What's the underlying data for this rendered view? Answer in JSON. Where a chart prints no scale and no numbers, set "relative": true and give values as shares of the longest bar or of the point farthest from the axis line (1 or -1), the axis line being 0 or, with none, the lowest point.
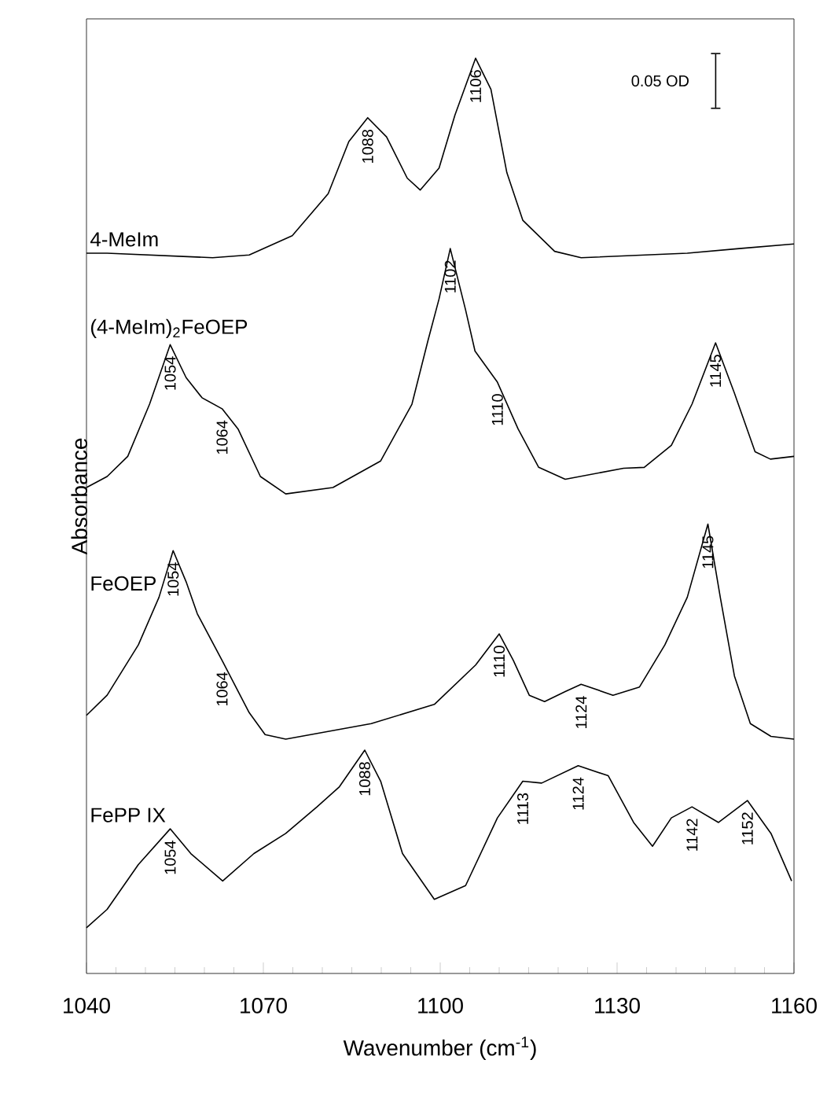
{
  "chart_data": {
    "type": "line",
    "relative": true,
    "xlabel": "Wavenumber (cm$^{-1}$)",
    "ylabel": "Absorbance",
    "xlim": [
      1040,
      1160
    ],
    "xticks": [
      1040,
      1070,
      1100,
      1130,
      1160
    ],
    "grid": false,
    "marker": "none",
    "line_style": "solid",
    "series": [
      {
        "name": "4-MeIm",
        "color": "#000000",
        "x": [
          1040,
          1043.5,
          1061.4,
          1067.6,
          1074.9,
          1081,
          1084.5,
          1087.7,
          1090.9,
          1094.4,
          1096.6,
          1099.8,
          1102.5,
          1106,
          1108.6,
          1111.3,
          1114,
          1119.4,
          1123.9,
          1141.9,
          1150.7,
          1160
        ],
        "values": [
          0.787,
          0.787,
          0.782,
          0.785,
          0.806,
          0.852,
          0.909,
          0.935,
          0.914,
          0.869,
          0.856,
          0.88,
          0.938,
          1.0,
          0.966,
          0.875,
          0.823,
          0.789,
          0.782,
          0.787,
          0.792,
          0.797
        ]
      },
      {
        "name": "(4-MeIm)$_{2}$FeOEP",
        "color": "#000000",
        "x": [
          1040,
          1043.5,
          1047,
          1050.7,
          1054.2,
          1056.9,
          1059.6,
          1063,
          1065.7,
          1069.5,
          1073.8,
          1081.8,
          1089.9,
          1095.2,
          1097.9,
          1099.8,
          1101.7,
          1104.3,
          1105.9,
          1109.7,
          1113.2,
          1116.7,
          1121.2,
          1131.1,
          1134.6,
          1139.2,
          1142.7,
          1146.7,
          1149.9,
          1153.4,
          1156,
          1160
        ],
        "values": [
          0.531,
          0.543,
          0.565,
          0.622,
          0.687,
          0.651,
          0.629,
          0.617,
          0.595,
          0.543,
          0.524,
          0.531,
          0.56,
          0.622,
          0.691,
          0.737,
          0.792,
          0.725,
          0.68,
          0.646,
          0.595,
          0.553,
          0.54,
          0.552,
          0.553,
          0.577,
          0.622,
          0.689,
          0.634,
          0.57,
          0.562,
          0.565
        ]
      },
      {
        "name": "FeOEP",
        "color": "#000000",
        "x": [
          1040,
          1043.5,
          1048.8,
          1052.3,
          1054.7,
          1056.9,
          1058.8,
          1063,
          1067.6,
          1070.3,
          1073.8,
          1088.3,
          1099,
          1106,
          1110,
          1112.4,
          1115.1,
          1117.7,
          1121.2,
          1123.9,
          1129.3,
          1133.8,
          1138.1,
          1141.9,
          1145.4,
          1147.5,
          1149.9,
          1152.6,
          1156.1,
          1160
        ],
        "values": [
          0.282,
          0.304,
          0.359,
          0.411,
          0.462,
          0.428,
          0.393,
          0.342,
          0.285,
          0.261,
          0.256,
          0.273,
          0.294,
          0.337,
          0.371,
          0.342,
          0.304,
          0.297,
          0.308,
          0.316,
          0.304,
          0.313,
          0.359,
          0.411,
          0.491,
          0.411,
          0.325,
          0.273,
          0.259,
          0.256
        ]
      },
      {
        "name": "FePP IX",
        "color": "#000000",
        "x": [
          1040,
          1043.5,
          1048.8,
          1054.2,
          1057.7,
          1063.1,
          1068.4,
          1073.8,
          1079.1,
          1082.9,
          1087.2,
          1089.9,
          1093.6,
          1099,
          1104.3,
          1109.7,
          1114,
          1117.2,
          1123.4,
          1128.5,
          1132.8,
          1136,
          1139.2,
          1142.7,
          1147.2,
          1152.1,
          1156.1,
          1159.6
        ],
        "values": [
          0.05,
          0.07,
          0.119,
          0.158,
          0.131,
          0.101,
          0.131,
          0.153,
          0.182,
          0.204,
          0.244,
          0.21,
          0.131,
          0.081,
          0.096,
          0.17,
          0.21,
          0.208,
          0.227,
          0.216,
          0.165,
          0.139,
          0.17,
          0.182,
          0.165,
          0.189,
          0.153,
          0.101
        ]
      }
    ],
    "annotations": [
      "0.05 OD",
      {
        "text": "1088",
        "x": 1087.7,
        "y": 0.935
      },
      {
        "text": "1106",
        "x": 1106,
        "y": 1.0
      },
      {
        "text": "1102",
        "x": 1101.7,
        "y": 0.792
      },
      {
        "text": "1054",
        "x": 1054.2,
        "y": 0.687
      },
      {
        "text": "1064",
        "x": 1063,
        "y": 0.617
      },
      {
        "text": "1110",
        "x": 1109.7,
        "y": 0.646
      },
      {
        "text": "1145",
        "x": 1146.7,
        "y": 0.689
      },
      {
        "text": "1054",
        "x": 1054.7,
        "y": 0.462
      },
      {
        "text": "1064",
        "x": 1063,
        "y": 0.342
      },
      {
        "text": "1110",
        "x": 1110,
        "y": 0.371
      },
      {
        "text": "1124",
        "x": 1123.9,
        "y": 0.316
      },
      {
        "text": "1145",
        "x": 1145.4,
        "y": 0.491
      },
      {
        "text": "1054",
        "x": 1054.2,
        "y": 0.158
      },
      {
        "text": "1088",
        "x": 1087.2,
        "y": 0.244
      },
      {
        "text": "1113",
        "x": 1114,
        "y": 0.21
      },
      {
        "text": "1124",
        "x": 1123.4,
        "y": 0.227
      },
      {
        "text": "1142",
        "x": 1142.7,
        "y": 0.182
      },
      {
        "text": "1152",
        "x": 1152.1,
        "y": 0.189
      }
    ]
  }
}
